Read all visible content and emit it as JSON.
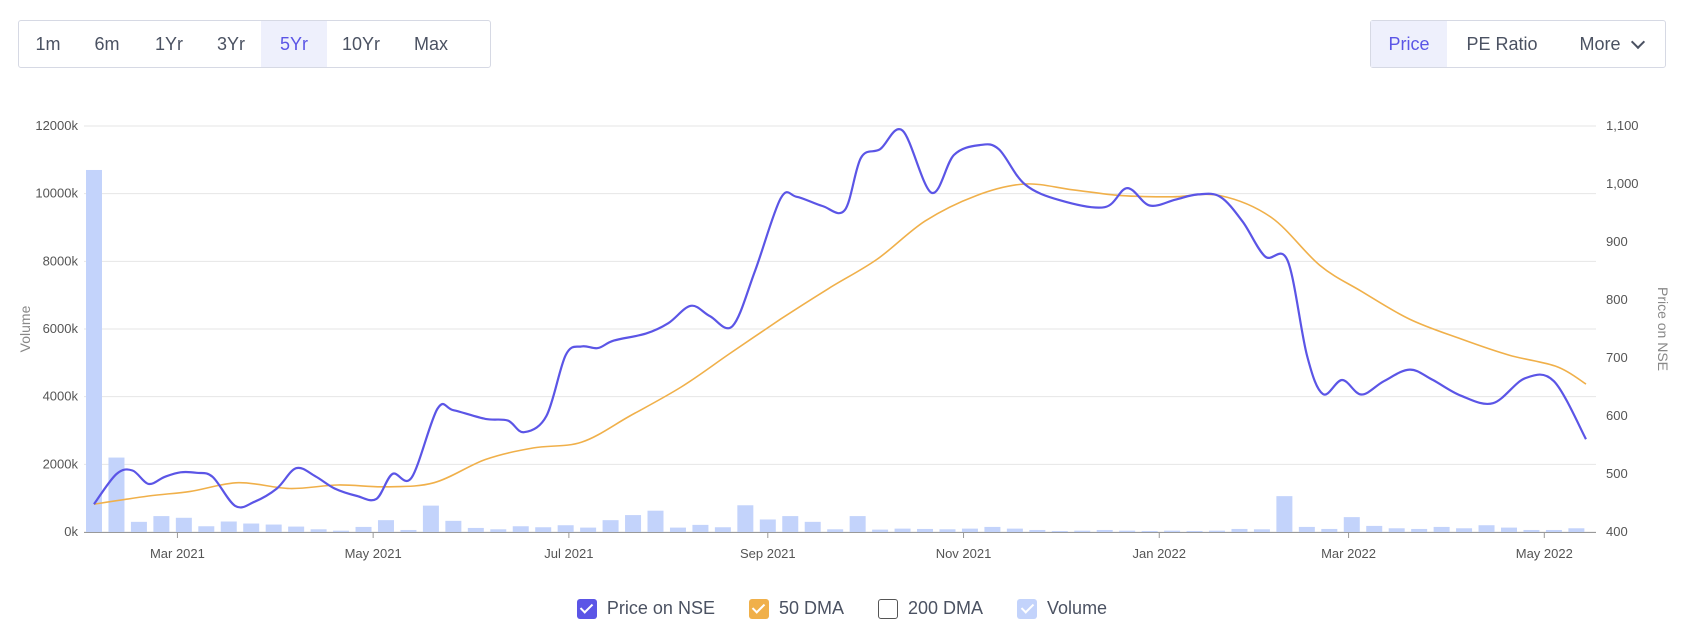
{
  "range_buttons": [
    {
      "label": "1m",
      "active": false
    },
    {
      "label": "6m",
      "active": false
    },
    {
      "label": "1Yr",
      "active": false
    },
    {
      "label": "3Yr",
      "active": false
    },
    {
      "label": "5Yr",
      "active": true
    },
    {
      "label": "10Yr",
      "active": false
    },
    {
      "label": "Max",
      "active": false
    }
  ],
  "view_buttons": {
    "price": "Price",
    "pe": "PE Ratio",
    "more": "More"
  },
  "colors": {
    "price": "#5b55e6",
    "dma50": "#f0b04a",
    "volume": "#c3d3fb",
    "grid": "#e6e6e6",
    "axis_text": "#555555"
  },
  "legend": [
    {
      "label": "Price on NSE",
      "checked": true,
      "color": "#5b55e6"
    },
    {
      "label": "50 DMA",
      "checked": true,
      "color": "#f0b04a"
    },
    {
      "label": "200 DMA",
      "checked": false,
      "color": "#ffffff"
    },
    {
      "label": "Volume",
      "checked": true,
      "color": "#c3d3fb"
    }
  ],
  "chart_data": {
    "type": "line",
    "xlabel": "",
    "ylabel_left": "Volume",
    "ylabel_right": "Price on NSE",
    "x_ticks": [
      {
        "label": "Mar 2021",
        "x": "2021-03-01"
      },
      {
        "label": "May 2021",
        "x": "2021-05-01"
      },
      {
        "label": "Jul 2021",
        "x": "2021-07-01"
      },
      {
        "label": "Sep 2021",
        "x": "2021-09-01"
      },
      {
        "label": "Nov 2021",
        "x": "2021-11-01"
      },
      {
        "label": "Jan 2022",
        "x": "2022-01-01"
      },
      {
        "label": "Mar 2022",
        "x": "2022-03-01"
      },
      {
        "label": "May 2022",
        "x": "2022-05-01"
      }
    ],
    "xlim": [
      "2021-02-03",
      "2022-05-14"
    ],
    "y_left": {
      "ticks": [
        0,
        2000,
        4000,
        6000,
        8000,
        10000,
        12000
      ],
      "suffix": "k",
      "lim": [
        0,
        12000
      ]
    },
    "y_right": {
      "ticks": [
        400,
        500,
        600,
        700,
        800,
        900,
        1000,
        1100
      ],
      "labels": [
        "400",
        "500",
        "600",
        "700",
        "800",
        "900",
        "1,000",
        "1,100"
      ],
      "lim": [
        400,
        1100
      ]
    },
    "series": [
      {
        "name": "Price on NSE",
        "axis": "right",
        "points": [
          [
            "2021-02-03",
            448
          ],
          [
            "2021-02-10",
            500
          ],
          [
            "2021-02-15",
            506
          ],
          [
            "2021-02-20",
            483
          ],
          [
            "2021-02-25",
            495
          ],
          [
            "2021-03-02",
            503
          ],
          [
            "2021-03-07",
            502
          ],
          [
            "2021-03-12",
            495
          ],
          [
            "2021-03-19",
            445
          ],
          [
            "2021-03-25",
            452
          ],
          [
            "2021-04-01",
            475
          ],
          [
            "2021-04-07",
            510
          ],
          [
            "2021-04-13",
            496
          ],
          [
            "2021-04-19",
            475
          ],
          [
            "2021-04-26",
            462
          ],
          [
            "2021-05-02",
            457
          ],
          [
            "2021-05-07",
            500
          ],
          [
            "2021-05-13",
            494
          ],
          [
            "2021-05-21",
            612
          ],
          [
            "2021-05-26",
            610
          ],
          [
            "2021-06-05",
            595
          ],
          [
            "2021-06-12",
            592
          ],
          [
            "2021-06-17",
            572
          ],
          [
            "2021-06-24",
            600
          ],
          [
            "2021-06-30",
            705
          ],
          [
            "2021-07-05",
            720
          ],
          [
            "2021-07-10",
            717
          ],
          [
            "2021-07-15",
            730
          ],
          [
            "2021-07-25",
            742
          ],
          [
            "2021-08-01",
            760
          ],
          [
            "2021-08-08",
            790
          ],
          [
            "2021-08-14",
            772
          ],
          [
            "2021-08-21",
            755
          ],
          [
            "2021-08-28",
            850
          ],
          [
            "2021-09-05",
            975
          ],
          [
            "2021-09-10",
            978
          ],
          [
            "2021-09-18",
            962
          ],
          [
            "2021-09-25",
            955
          ],
          [
            "2021-09-30",
            1045
          ],
          [
            "2021-10-06",
            1060
          ],
          [
            "2021-10-13",
            1092
          ],
          [
            "2021-10-22",
            985
          ],
          [
            "2021-10-29",
            1050
          ],
          [
            "2021-11-06",
            1067
          ],
          [
            "2021-11-12",
            1060
          ],
          [
            "2021-11-20",
            1000
          ],
          [
            "2021-12-01",
            972
          ],
          [
            "2021-12-15",
            960
          ],
          [
            "2021-12-22",
            993
          ],
          [
            "2021-12-29",
            963
          ],
          [
            "2022-01-06",
            973
          ],
          [
            "2022-01-13",
            982
          ],
          [
            "2022-01-20",
            978
          ],
          [
            "2022-01-27",
            935
          ],
          [
            "2022-02-03",
            875
          ],
          [
            "2022-02-10",
            868
          ],
          [
            "2022-02-16",
            705
          ],
          [
            "2022-02-21",
            638
          ],
          [
            "2022-02-27",
            662
          ],
          [
            "2022-03-05",
            637
          ],
          [
            "2022-03-12",
            660
          ],
          [
            "2022-03-20",
            680
          ],
          [
            "2022-03-27",
            663
          ],
          [
            "2022-04-05",
            635
          ],
          [
            "2022-04-15",
            622
          ],
          [
            "2022-04-25",
            665
          ],
          [
            "2022-05-04",
            660
          ],
          [
            "2022-05-14",
            560
          ]
        ]
      },
      {
        "name": "50 DMA",
        "axis": "right",
        "points": [
          [
            "2021-02-03",
            448
          ],
          [
            "2021-02-20",
            462
          ],
          [
            "2021-03-05",
            470
          ],
          [
            "2021-03-20",
            485
          ],
          [
            "2021-04-05",
            475
          ],
          [
            "2021-04-20",
            481
          ],
          [
            "2021-05-05",
            478
          ],
          [
            "2021-05-20",
            485
          ],
          [
            "2021-06-05",
            525
          ],
          [
            "2021-06-20",
            545
          ],
          [
            "2021-07-05",
            555
          ],
          [
            "2021-07-20",
            600
          ],
          [
            "2021-08-05",
            650
          ],
          [
            "2021-08-20",
            707
          ],
          [
            "2021-09-05",
            767
          ],
          [
            "2021-09-20",
            820
          ],
          [
            "2021-10-05",
            870
          ],
          [
            "2021-10-20",
            936
          ],
          [
            "2021-11-05",
            980
          ],
          [
            "2021-11-20",
            1000
          ],
          [
            "2021-12-05",
            990
          ],
          [
            "2021-12-20",
            980
          ],
          [
            "2022-01-05",
            978
          ],
          [
            "2022-01-20",
            980
          ],
          [
            "2022-02-05",
            942
          ],
          [
            "2022-02-20",
            860
          ],
          [
            "2022-03-05",
            815
          ],
          [
            "2022-03-20",
            767
          ],
          [
            "2022-04-05",
            733
          ],
          [
            "2022-04-20",
            705
          ],
          [
            "2022-05-05",
            685
          ],
          [
            "2022-05-14",
            655
          ]
        ]
      },
      {
        "name": "Volume",
        "axis": "left",
        "type": "bar",
        "points": [
          [
            "2021-02-03",
            10700
          ],
          [
            "2021-02-10",
            2200
          ],
          [
            "2021-02-17",
            300
          ],
          [
            "2021-02-24",
            470
          ],
          [
            "2021-03-03",
            420
          ],
          [
            "2021-03-10",
            170
          ],
          [
            "2021-03-17",
            310
          ],
          [
            "2021-03-24",
            250
          ],
          [
            "2021-03-31",
            220
          ],
          [
            "2021-04-07",
            160
          ],
          [
            "2021-04-14",
            80
          ],
          [
            "2021-04-21",
            40
          ],
          [
            "2021-04-28",
            150
          ],
          [
            "2021-05-05",
            350
          ],
          [
            "2021-05-12",
            60
          ],
          [
            "2021-05-19",
            780
          ],
          [
            "2021-05-26",
            330
          ],
          [
            "2021-06-02",
            120
          ],
          [
            "2021-06-09",
            80
          ],
          [
            "2021-06-16",
            170
          ],
          [
            "2021-06-23",
            140
          ],
          [
            "2021-06-30",
            200
          ],
          [
            "2021-07-07",
            130
          ],
          [
            "2021-07-14",
            350
          ],
          [
            "2021-07-21",
            500
          ],
          [
            "2021-07-28",
            630
          ],
          [
            "2021-08-04",
            130
          ],
          [
            "2021-08-11",
            210
          ],
          [
            "2021-08-18",
            140
          ],
          [
            "2021-08-25",
            790
          ],
          [
            "2021-09-01",
            370
          ],
          [
            "2021-09-08",
            470
          ],
          [
            "2021-09-15",
            300
          ],
          [
            "2021-09-22",
            80
          ],
          [
            "2021-09-29",
            470
          ],
          [
            "2021-10-06",
            70
          ],
          [
            "2021-10-13",
            100
          ],
          [
            "2021-10-20",
            90
          ],
          [
            "2021-10-27",
            80
          ],
          [
            "2021-11-03",
            100
          ],
          [
            "2021-11-10",
            150
          ],
          [
            "2021-11-17",
            100
          ],
          [
            "2021-11-24",
            60
          ],
          [
            "2021-12-01",
            30
          ],
          [
            "2021-12-08",
            40
          ],
          [
            "2021-12-15",
            60
          ],
          [
            "2021-12-22",
            40
          ],
          [
            "2021-12-29",
            30
          ],
          [
            "2022-01-05",
            40
          ],
          [
            "2022-01-12",
            30
          ],
          [
            "2022-01-19",
            40
          ],
          [
            "2022-01-26",
            90
          ],
          [
            "2022-02-02",
            80
          ],
          [
            "2022-02-09",
            1060
          ],
          [
            "2022-02-16",
            150
          ],
          [
            "2022-02-23",
            90
          ],
          [
            "2022-03-02",
            440
          ],
          [
            "2022-03-09",
            180
          ],
          [
            "2022-03-16",
            110
          ],
          [
            "2022-03-23",
            90
          ],
          [
            "2022-03-30",
            150
          ],
          [
            "2022-04-06",
            110
          ],
          [
            "2022-04-13",
            200
          ],
          [
            "2022-04-20",
            130
          ],
          [
            "2022-04-27",
            60
          ],
          [
            "2022-05-04",
            60
          ],
          [
            "2022-05-11",
            110
          ]
        ]
      }
    ],
    "grid": true,
    "legend_position": "bottom-center"
  }
}
